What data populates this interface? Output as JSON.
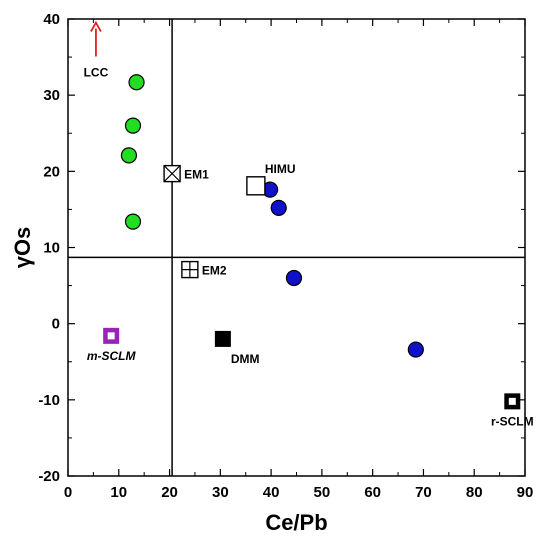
{
  "chart_data": {
    "type": "scatter",
    "xlabel": "Ce/Pb",
    "ylabel": "γOs",
    "xlim": [
      0,
      90
    ],
    "ylim": [
      -20,
      40
    ],
    "x_ticks": [
      0,
      10,
      20,
      30,
      40,
      50,
      60,
      70,
      80,
      90
    ],
    "y_ticks": [
      -20,
      -10,
      0,
      10,
      20,
      30,
      40
    ],
    "reference_lines": {
      "vertical_x": 20.5,
      "horizontal_y": 8.7
    },
    "series": [
      {
        "color": "#22dd22",
        "marker": "circle",
        "points": [
          {
            "x": 13.5,
            "y": 31.7
          },
          {
            "x": 12.8,
            "y": 26.0
          },
          {
            "x": 12.0,
            "y": 22.1
          },
          {
            "x": 12.8,
            "y": 13.4
          }
        ]
      },
      {
        "color": "#1111cc",
        "marker": "circle",
        "points": [
          {
            "x": 39.8,
            "y": 17.6
          },
          {
            "x": 41.5,
            "y": 15.2
          },
          {
            "x": 44.5,
            "y": 6.0
          },
          {
            "x": 68.5,
            "y": -3.4
          }
        ]
      }
    ],
    "end_members": [
      {
        "label": "EM1",
        "x": 20.5,
        "y": 19.7,
        "marker": "square-x",
        "color": "#000000",
        "label_side": "right"
      },
      {
        "label": "HIMU",
        "x": 37.0,
        "y": 18.1,
        "marker": "open-square",
        "color": "#000000",
        "label_side": "above-right"
      },
      {
        "label": "EM2",
        "x": 24.0,
        "y": 7.1,
        "marker": "square-plus",
        "color": "#000000",
        "label_side": "right"
      },
      {
        "label": "DMM",
        "x": 30.5,
        "y": -2.0,
        "marker": "filled-square",
        "color": "#000000",
        "label_side": "below-right"
      },
      {
        "label": "m-SCLM",
        "x": 8.5,
        "y": -1.6,
        "marker": "square-in-square",
        "color": "#9922bb",
        "label_side": "below",
        "italic": true
      },
      {
        "label": "r-SCLM",
        "x": 87.5,
        "y": -10.2,
        "marker": "square-in-square",
        "color": "#000000",
        "label_side": "below"
      }
    ],
    "annotations": [
      {
        "text": "LCC",
        "x": 5.5,
        "y": 33.5,
        "arrow_to_y": 39.0,
        "color": "#dd2222"
      }
    ]
  }
}
